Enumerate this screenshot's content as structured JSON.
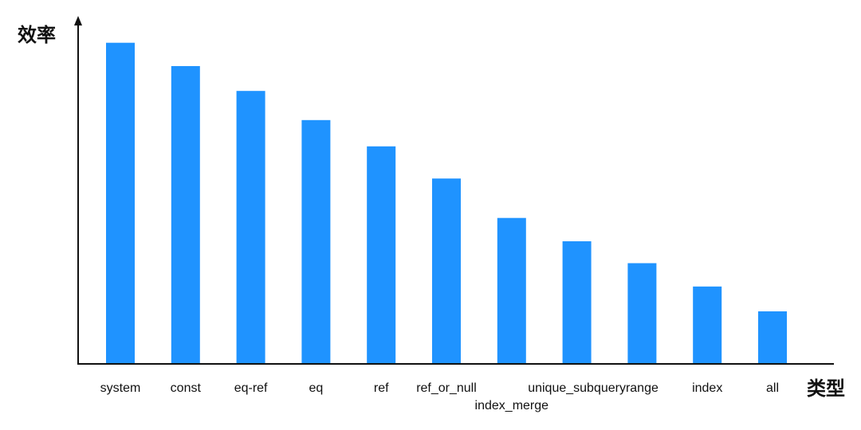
{
  "chart_data": {
    "type": "bar",
    "ylabel": "效率",
    "xlabel": "类型",
    "categories": [
      "system",
      "const",
      "eq-ref",
      "eq",
      "ref",
      "ref_or_null",
      "index_merge",
      "unique_subquery",
      "range",
      "index",
      "all"
    ],
    "values": [
      11.0,
      10.2,
      9.35,
      8.35,
      7.45,
      6.35,
      5.0,
      4.2,
      3.45,
      2.65,
      1.8
    ],
    "ylim": [
      0,
      12
    ],
    "bar_color": "#1f93ff",
    "grid": false,
    "legend": "none"
  }
}
